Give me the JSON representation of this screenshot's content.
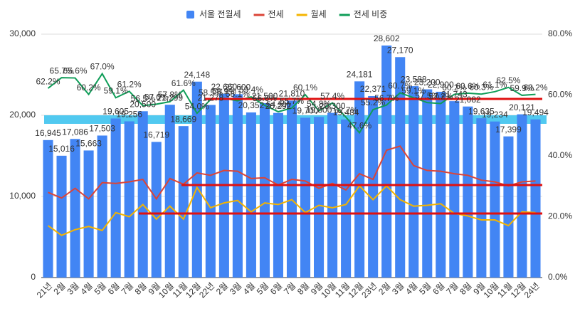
{
  "chart_data": {
    "type": "combo",
    "categories": [
      "21년",
      "2월",
      "3월",
      "4월",
      "5월",
      "6월",
      "7월",
      "8월",
      "9월",
      "10월",
      "11월",
      "12월",
      "22년",
      "2월",
      "3월",
      "4월",
      "5월",
      "6월",
      "7월",
      "8월",
      "9월",
      "10월",
      "11월",
      "12월",
      "23년",
      "2월",
      "3월",
      "4월",
      "5월",
      "6월",
      "7월",
      "8월",
      "9월",
      "10월",
      "11월",
      "12월",
      "24년"
    ],
    "series": [
      {
        "name": "서울 전월세",
        "type": "bar",
        "color": "#4285f4",
        "values": [
          16945,
          15016,
          17086,
          15663,
          17503,
          19605,
          19256,
          20500,
          16719,
          21299,
          18669,
          24148,
          21278,
          22660,
          22600,
          20352,
          21500,
          20292,
          21810,
          19700,
          19800,
          20300,
          19484,
          24181,
          22371,
          28602,
          27170,
          23588,
          23200,
          22900,
          21743,
          21082,
          19635,
          19234,
          17399,
          20121,
          19494
        ],
        "value_labels": [
          "16,945",
          "15,016",
          "17,086",
          "15,663",
          "17,503",
          "19,605",
          "19,256",
          "20,500",
          "16,719",
          "21,299",
          "18,669",
          "24,148",
          "21,278",
          "22,660",
          "22,600",
          "20,352",
          "21,500",
          "20,292",
          "21,810",
          "19,700",
          "19,800",
          "20,300",
          "19,484",
          "24,181",
          "22,371",
          "28,602",
          "27,170",
          "23,588",
          "23,200",
          "22,900",
          "21,743",
          "21,082",
          "19,635",
          "19,234",
          "17,399",
          "20,121",
          "19,494"
        ]
      },
      {
        "name": "전세",
        "type": "line",
        "color": "#db4437",
        "values": [
          10500,
          9800,
          11000,
          9700,
          11700,
          11600,
          11800,
          12100,
          9700,
          12200,
          11500,
          12900,
          12600,
          13200,
          13100,
          12200,
          12300,
          11400,
          12100,
          11900,
          11000,
          11600,
          10800,
          12800,
          12100,
          15700,
          16200,
          13800,
          13200,
          13100,
          12800,
          12600,
          12000,
          11800,
          11300,
          11800,
          11900
        ]
      },
      {
        "name": "월세",
        "type": "line",
        "color": "#f4b400",
        "values": [
          6400,
          5200,
          5900,
          6300,
          5800,
          8000,
          7500,
          9000,
          7200,
          8800,
          7200,
          11100,
          8600,
          9200,
          9500,
          8100,
          9200,
          9000,
          9600,
          8000,
          8900,
          8600,
          9000,
          11300,
          9600,
          11300,
          9600,
          8800,
          8900,
          9100,
          7900,
          7600,
          7100,
          7100,
          6400,
          8100,
          8000
        ]
      },
      {
        "name": "전세 비중",
        "type": "line",
        "axis": "y2",
        "color": "#0f9d58",
        "values": [
          62.2,
          65.7,
          65.6,
          60.2,
          67.0,
          59.1,
          61.2,
          56.5,
          57.0,
          57.8,
          61.6,
          54.0,
          58.5,
          58.9,
          58.1,
          59.4,
          56.6,
          54.5,
          55.7,
          60.1,
          54.8,
          57.4,
          52.7,
          47.6,
          55.2,
          56.7,
          60.7,
          59.1,
          57.5,
          57.2,
          60.2,
          60.6,
          60.3,
          61.1,
          62.5,
          59.9,
          60.2
        ],
        "value_labels": [
          "62.2%",
          "65.7%",
          "65.6%",
          "60.2%",
          "67.0%",
          "59.1%",
          "61.2%",
          "56.5%",
          "57.0%",
          "57.8%",
          "61.6%",
          "54.0%",
          "58.5%",
          "58.9%",
          "58.1%",
          "59.4%",
          "56.6%",
          "54.5%",
          "55.7%",
          "60.1%",
          "54.8%",
          "57.4%",
          "52.7%",
          "47.6%",
          "55.2%",
          "56.7%",
          "60.7%",
          "59.1%",
          "57.5%",
          "57.2%",
          "60.2%",
          "60.6%",
          "60.3%",
          "61.1%",
          "62.5%",
          "59.9%",
          "60.2%"
        ]
      }
    ],
    "ylim": [
      0,
      30000
    ],
    "yticks": [
      0,
      {
        "value": 10000,
        "label": "10,000"
      },
      {
        "value": 20000,
        "label": "20,000"
      },
      {
        "value": 30000,
        "label": "30,000"
      }
    ],
    "y2lim": [
      0,
      80
    ],
    "y2ticks": [
      {
        "value": 0,
        "label": "0.0%"
      },
      {
        "value": 20,
        "label": "20.0%"
      },
      {
        "value": 40,
        "label": "40.0%"
      },
      {
        "value": 60,
        "label": "60.0%"
      },
      {
        "value": 80,
        "label": "80.0%"
      }
    ],
    "grid": true,
    "legend": "top"
  }
}
